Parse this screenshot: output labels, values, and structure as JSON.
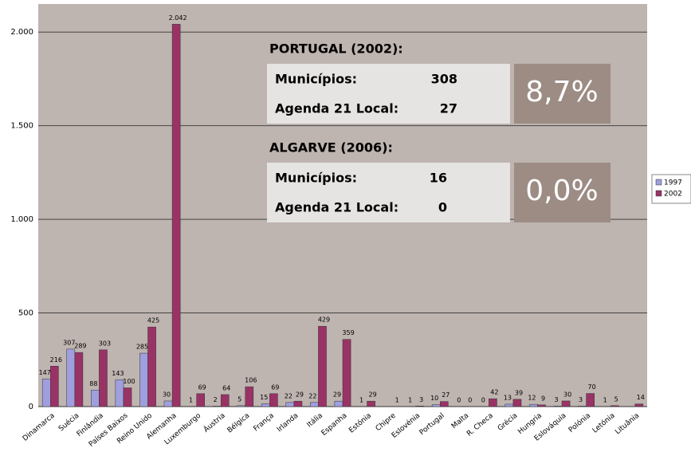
{
  "chart_data": {
    "type": "bar",
    "categories": [
      "Dinamarca",
      "Suécia",
      "Finlândia",
      "Países Baixos",
      "Reino Unido",
      "Alemanha",
      "Luxemburgo",
      "Áustria",
      "Bélgica",
      "França",
      "Irlanda",
      "Itália",
      "Espanha",
      "Estónia",
      "Chipre",
      "Eslovénia",
      "Portugal",
      "Malta",
      "R. Checa",
      "Grécia",
      "Hungria",
      "Eslováquia",
      "Polónia",
      "Letónia",
      "Lituânia"
    ],
    "series": [
      {
        "name": "1997",
        "color": "#9f9fdf",
        "values": [
          147,
          307,
          88,
          143,
          285,
          30,
          1,
          2,
          5,
          15,
          22,
          22,
          29,
          1,
          null,
          1,
          10,
          0,
          0,
          13,
          12,
          3,
          3,
          1,
          null
        ]
      },
      {
        "name": "2002",
        "color": "#993366",
        "values": [
          216,
          289,
          303,
          100,
          425,
          2042,
          69,
          64,
          106,
          69,
          29,
          429,
          359,
          29,
          1,
          3,
          27,
          0,
          42,
          39,
          9,
          30,
          70,
          5,
          14
        ],
        "value_labels": [
          "216",
          "289",
          "303",
          "100",
          "425",
          "2.042",
          "69",
          "64",
          "106",
          "69",
          "29",
          "429",
          "359",
          "29",
          "1",
          "3",
          "27",
          "0",
          "42",
          "39",
          "9",
          "30",
          "70",
          "5",
          "14"
        ]
      }
    ],
    "ylim": [
      0,
      2150
    ],
    "yticks": [
      0,
      500,
      {
        "value": 1000,
        "label": "1.000"
      },
      {
        "value": 1500,
        "label": "1.500"
      },
      {
        "value": 2000,
        "label": "2.000"
      }
    ],
    "grid": true,
    "legend": "right",
    "annotations": [
      {
        "title": "PORTUGAL (2002):",
        "rows": [
          [
            "Municípios:",
            "308"
          ],
          [
            "Agenda 21 Local:",
            "27"
          ]
        ],
        "percent": "8,7%"
      },
      {
        "title": "ALGARVE (2006):",
        "rows": [
          [
            "Municípios:",
            "16"
          ],
          [
            "Agenda 21 Local:",
            "0"
          ]
        ],
        "percent": "0,0%"
      }
    ]
  }
}
